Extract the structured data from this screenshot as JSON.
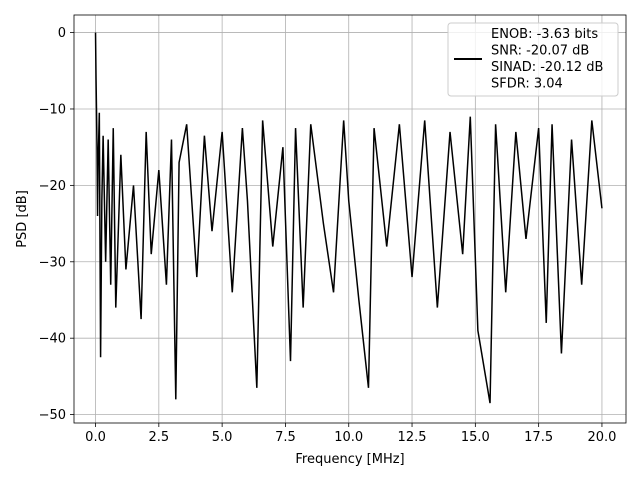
{
  "chart_data": {
    "type": "line",
    "title": "",
    "xlabel": "Frequency [MHz]",
    "ylabel": "PSD [dB]",
    "xlim": [
      -0.85,
      20.95
    ],
    "ylim": [
      -51.1,
      2.3
    ],
    "xticks": [
      0.0,
      2.5,
      5.0,
      7.5,
      10.0,
      12.5,
      15.0,
      17.5,
      20.0
    ],
    "xtick_labels": [
      "0.0",
      "2.5",
      "5.0",
      "7.5",
      "10.0",
      "12.5",
      "15.0",
      "17.5",
      "20.0"
    ],
    "yticks": [
      0,
      -10,
      -20,
      -30,
      -40,
      -50
    ],
    "ytick_labels": [
      "0",
      "−10",
      "−20",
      "−30",
      "−40",
      "−50"
    ],
    "grid": true,
    "legend_position": "top-right",
    "series": [
      {
        "name": "ENOB: -3.63 bits\nSNR: -20.07 dB\nSINAD: -20.12 dB\nSFDR: 3.04",
        "color": "#000000",
        "approximate": true,
        "x": [
          0.0,
          0.02,
          0.04,
          0.06,
          0.08,
          0.1,
          0.15,
          0.2,
          0.25,
          0.3,
          0.4,
          0.5,
          0.6,
          0.7,
          0.8,
          1.0,
          1.2,
          1.5,
          1.8,
          2.0,
          2.2,
          2.5,
          2.8,
          3.0,
          3.17,
          3.3,
          3.6,
          4.0,
          4.3,
          4.6,
          5.0,
          5.4,
          5.8,
          6.0,
          6.37,
          6.6,
          7.0,
          7.4,
          7.7,
          7.9,
          8.2,
          8.5,
          9.0,
          9.4,
          9.8,
          10.0,
          10.4,
          10.78,
          11.0,
          11.5,
          12.0,
          12.5,
          13.0,
          13.5,
          14.0,
          14.5,
          14.8,
          15.1,
          15.58,
          15.8,
          16.2,
          16.6,
          17.0,
          17.5,
          17.8,
          18.03,
          18.4,
          18.8,
          19.2,
          19.6,
          20.0
        ],
        "y": [
          0.0,
          -6.0,
          -10.5,
          -15.5,
          -24.0,
          -17.5,
          -10.5,
          -42.5,
          -22.0,
          -13.5,
          -30.0,
          -14.0,
          -33.0,
          -12.5,
          -36.0,
          -16.0,
          -31.0,
          -20.0,
          -37.5,
          -13.0,
          -29.0,
          -18.0,
          -33.0,
          -14.0,
          -48.0,
          -17.0,
          -12.0,
          -32.0,
          -13.5,
          -26.0,
          -13.0,
          -34.0,
          -12.5,
          -22.0,
          -46.5,
          -11.5,
          -28.0,
          -15.0,
          -43.0,
          -12.5,
          -36.0,
          -12.0,
          -25.0,
          -34.0,
          -11.5,
          -22.0,
          -35.0,
          -46.5,
          -12.5,
          -28.0,
          -12.0,
          -32.0,
          -11.5,
          -36.0,
          -13.0,
          -29.0,
          -11.0,
          -39.0,
          -48.5,
          -12.0,
          -34.0,
          -13.0,
          -27.0,
          -12.5,
          -38.0,
          -12.0,
          -42.0,
          -14.0,
          -33.0,
          -11.5,
          -23.0
        ]
      }
    ]
  }
}
